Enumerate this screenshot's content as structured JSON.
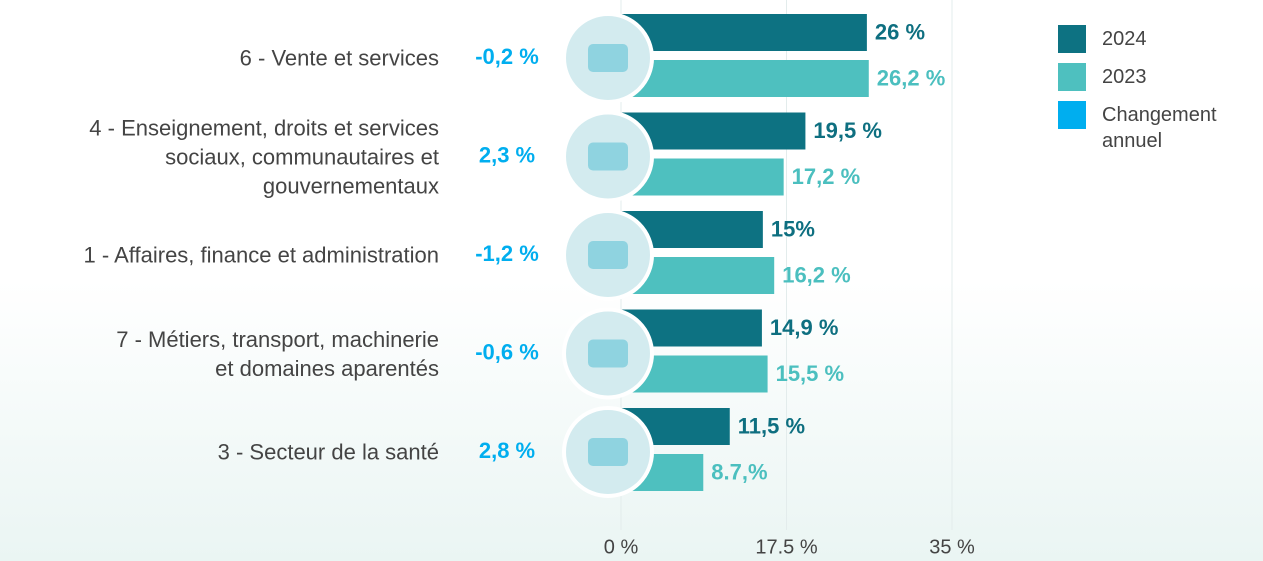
{
  "chart_data": {
    "type": "bar",
    "orientation": "horizontal",
    "categories": [
      "6 - Vente et services",
      "4 - Enseignement, droits et services\nsociaux, communautaires et\ngouvernementaux",
      "1 - Affaires, finance et administration",
      "7 - Métiers, transport, machinerie\net domaines aparentés",
      "3 - Secteur de la santé"
    ],
    "series": [
      {
        "name": "2024",
        "color": "#0d7282",
        "label_color": "#0e6f80",
        "values": [
          26,
          19.5,
          15,
          14.9,
          11.5
        ],
        "value_labels": [
          "26 %",
          "19,5 %",
          "15%",
          "14,9 %",
          "11,5 %"
        ]
      },
      {
        "name": "2023",
        "color": "#4ec0bf",
        "label_color": "#4bbfbf",
        "values": [
          26.2,
          17.2,
          16.2,
          15.5,
          8.7
        ],
        "value_labels": [
          "26,2 %",
          "17,2 %",
          "16,2 %",
          "15,5 %",
          "8.7,%"
        ]
      },
      {
        "name": "Changement\nannuel",
        "color": "#00aeef",
        "values": [
          -0.2,
          2.3,
          -1.2,
          -0.6,
          2.8
        ],
        "value_labels": [
          "-0,2 %",
          "2,3 %",
          "-1,2 %",
          "-0,6 %",
          "2,8 %"
        ]
      }
    ],
    "xlim": [
      0,
      35
    ],
    "xticks": [
      {
        "value": 0,
        "label": "0 %"
      },
      {
        "value": 17.5,
        "label": "17.5 %"
      },
      {
        "value": 35,
        "label": "35 %"
      }
    ],
    "grid": true,
    "legend": "top-right"
  }
}
